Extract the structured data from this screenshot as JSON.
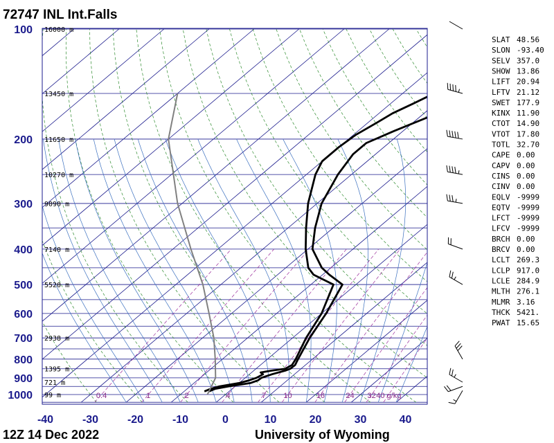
{
  "header": {
    "station": "72747 INL Int.Falls",
    "time": "12Z 14 Dec 2022",
    "credit": "University of Wyoming"
  },
  "chart_data": {
    "type": "line",
    "title": "72747 INL Int.Falls",
    "x_axis": {
      "ticks": [
        -40,
        -30,
        -20,
        -10,
        0,
        10,
        20,
        30,
        40
      ],
      "range": [
        -40,
        45
      ]
    },
    "y_axis": {
      "scale": "log",
      "ticks": [
        100,
        200,
        300,
        400,
        500,
        600,
        700,
        800,
        900,
        1000
      ],
      "range": [
        1000,
        100
      ]
    },
    "height_labels": [
      {
        "p": 100,
        "text": "16000 m"
      },
      {
        "p": 150,
        "text": "13450 m"
      },
      {
        "p": 200,
        "text": "11650 m"
      },
      {
        "p": 250,
        "text": "10270 m"
      },
      {
        "p": 300,
        "text": "9090 m"
      },
      {
        "p": 400,
        "text": "7140 m"
      },
      {
        "p": 500,
        "text": "5520 m"
      },
      {
        "p": 700,
        "text": "2938 m"
      },
      {
        "p": 850,
        "text": "1395 m"
      },
      {
        "p": 925,
        "text": "721 m"
      },
      {
        "p": 1000,
        "text": "99 m"
      }
    ],
    "mixing_ratio_labels": [
      "0.4",
      "1",
      "2",
      "4",
      "7",
      "10",
      "16",
      "24",
      "32",
      "40 g/kg"
    ],
    "mixing_ratio_values": [
      0.4,
      1,
      2,
      4,
      7,
      10,
      16,
      24,
      32,
      40
    ],
    "series": [
      {
        "role": "temperature",
        "color": "#000000",
        "points": [
          [
            980,
            -4.5
          ],
          [
            965,
            -3.8
          ],
          [
            950,
            -1.5
          ],
          [
            930,
            2.5
          ],
          [
            915,
            3.5
          ],
          [
            900,
            3.6
          ],
          [
            880,
            5
          ],
          [
            860,
            7
          ],
          [
            850,
            7.6
          ],
          [
            830,
            7.7
          ],
          [
            800,
            6.8
          ],
          [
            700,
            3.8
          ],
          [
            600,
            1.0
          ],
          [
            500,
            -3.0
          ],
          [
            470,
            -8.5
          ],
          [
            450,
            -12
          ],
          [
            400,
            -19
          ],
          [
            350,
            -24
          ],
          [
            300,
            -29
          ],
          [
            250,
            -33
          ],
          [
            220,
            -35
          ],
          [
            205,
            -35
          ],
          [
            190,
            -32
          ],
          [
            170,
            -27
          ],
          [
            160,
            -24
          ],
          [
            150,
            -22
          ],
          [
            140,
            -19
          ],
          [
            130,
            -17
          ],
          [
            120,
            -15.5
          ],
          [
            110,
            -14.5
          ],
          [
            100,
            -13.5
          ]
        ]
      },
      {
        "role": "dewpoint",
        "color": "#000000",
        "points": [
          [
            980,
            -5.5
          ],
          [
            965,
            -4.8
          ],
          [
            950,
            -3.5
          ],
          [
            930,
            0
          ],
          [
            915,
            1.5
          ],
          [
            900,
            2.5
          ],
          [
            880,
            3
          ],
          [
            870,
            2
          ],
          [
            860,
            4
          ],
          [
            850,
            6.5
          ],
          [
            830,
            7
          ],
          [
            800,
            6.3
          ],
          [
            700,
            3
          ],
          [
            600,
            0
          ],
          [
            500,
            -5
          ],
          [
            470,
            -12
          ],
          [
            450,
            -15
          ],
          [
            400,
            -20.5
          ],
          [
            350,
            -26
          ],
          [
            300,
            -32
          ],
          [
            250,
            -38
          ],
          [
            230,
            -40
          ],
          [
            210,
            -40
          ],
          [
            195,
            -39.5
          ],
          [
            180,
            -38
          ],
          [
            170,
            -37
          ],
          [
            160,
            -35
          ],
          [
            150,
            -33
          ],
          [
            140,
            -32.5
          ],
          [
            130,
            -32
          ],
          [
            120,
            -30
          ],
          [
            110,
            -30
          ],
          [
            100,
            -29
          ]
        ]
      },
      {
        "role": "parcel",
        "color": "#808080",
        "points": [
          [
            1000,
            -4
          ],
          [
            900,
            -6.6
          ],
          [
            800,
            -11.6
          ],
          [
            700,
            -17.5
          ],
          [
            600,
            -25
          ],
          [
            500,
            -34
          ],
          [
            400,
            -46
          ],
          [
            300,
            -61
          ],
          [
            200,
            -80
          ],
          [
            150,
            -90
          ]
        ]
      }
    ],
    "wind_barbs": [
      {
        "p": 100,
        "dir": 300,
        "kt": 0
      },
      {
        "p": 150,
        "dir": 285,
        "kt": 45
      },
      {
        "p": 200,
        "dir": 280,
        "kt": 50
      },
      {
        "p": 250,
        "dir": 280,
        "kt": 45
      },
      {
        "p": 300,
        "dir": 280,
        "kt": 35
      },
      {
        "p": 400,
        "dir": 290,
        "kt": 20
      },
      {
        "p": 500,
        "dir": 300,
        "kt": 25
      },
      {
        "p": 800,
        "dir": 330,
        "kt": 30
      },
      {
        "p": 925,
        "dir": 300,
        "kt": 25
      },
      {
        "p": 950,
        "dir": 250,
        "kt": 20
      },
      {
        "p": 975,
        "dir": 210,
        "kt": 15
      }
    ],
    "indices": [
      {
        "key": "SLAT",
        "value": "48.56"
      },
      {
        "key": "SLON",
        "value": "-93.40"
      },
      {
        "key": "SELV",
        "value": "357.0"
      },
      {
        "key": "SHOW",
        "value": "13.86"
      },
      {
        "key": "LIFT",
        "value": "20.94"
      },
      {
        "key": "LFTV",
        "value": "21.12"
      },
      {
        "key": "SWET",
        "value": "177.9"
      },
      {
        "key": "KINX",
        "value": "11.90"
      },
      {
        "key": "CTOT",
        "value": "14.90"
      },
      {
        "key": "VTOT",
        "value": "17.80"
      },
      {
        "key": "TOTL",
        "value": "32.70"
      },
      {
        "key": "CAPE",
        "value": "0.00"
      },
      {
        "key": "CAPV",
        "value": "0.00"
      },
      {
        "key": "CINS",
        "value": "0.00"
      },
      {
        "key": "CINV",
        "value": "0.00"
      },
      {
        "key": "EQLV",
        "value": "-9999"
      },
      {
        "key": "EQTV",
        "value": "-9999"
      },
      {
        "key": "LFCT",
        "value": "-9999"
      },
      {
        "key": "LFCV",
        "value": "-9999"
      },
      {
        "key": "BRCH",
        "value": "0.00"
      },
      {
        "key": "BRCV",
        "value": "0.00"
      },
      {
        "key": "LCLT",
        "value": "269.3"
      },
      {
        "key": "LCLP",
        "value": "917.0"
      },
      {
        "key": "LCLE",
        "value": "284.9"
      },
      {
        "key": "MLTH",
        "value": "276.1"
      },
      {
        "key": "MLMR",
        "value": "3.16"
      },
      {
        "key": "THCK",
        "value": "5421."
      },
      {
        "key": "PWAT",
        "value": "15.65"
      }
    ],
    "colors": {
      "isobar": "#1a1a8c",
      "isotherm": "#1a1a8c",
      "dry_adiabat": "#2e8b2e",
      "moist_adiabat": "#3a6fbf",
      "mixing_ratio": "#9a2a9a",
      "frame": "#1a1a8c"
    }
  }
}
